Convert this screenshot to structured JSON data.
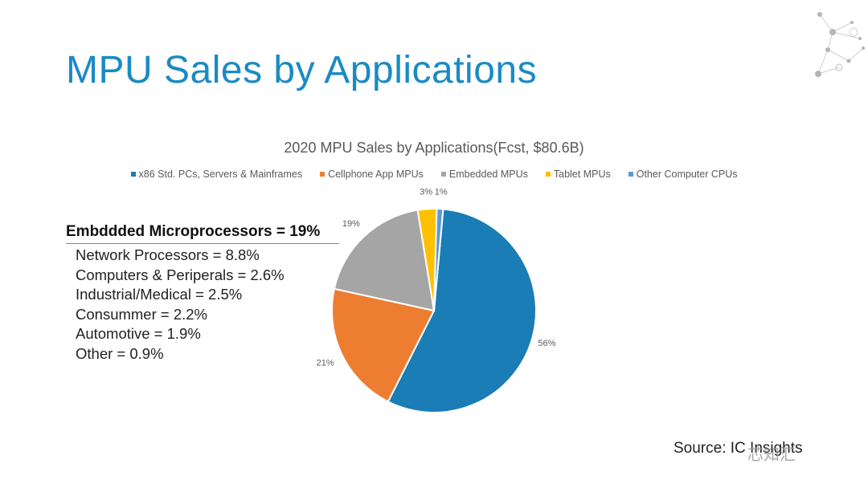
{
  "slide": {
    "title": "MPU Sales by Applications",
    "source": "Source: IC Insights",
    "watermark": "芯知汇"
  },
  "chart_data": {
    "type": "pie",
    "title": "2020 MPU Sales by Applications(Fcst, $80.6B)",
    "legend_position": "top",
    "slices": [
      {
        "name": "x86 Std. PCs, Servers & Mainframes",
        "value": 56,
        "label": "56%",
        "color": "#1a7db5"
      },
      {
        "name": "Cellphone App MPUs",
        "value": 21,
        "label": "21%",
        "color": "#ed7d31"
      },
      {
        "name": "Embedded MPUs",
        "value": 19,
        "label": "19%",
        "color": "#a5a5a5"
      },
      {
        "name": "Tablet MPUs",
        "value": 3,
        "label": "3%",
        "color": "#ffc000"
      },
      {
        "name": "Other Computer CPUs",
        "value": 1,
        "label": "1%",
        "color": "#5b9bd5"
      }
    ]
  },
  "embedded_breakdown": {
    "heading": "Embddded Microprocessors = 19%",
    "items": [
      "Network Processors = 8.8%",
      "Computers & Periperals = 2.6%",
      "Industrial/Medical = 2.5%",
      "Consummer = 2.2%",
      "Automotive = 1.9%",
      "Other = 0.9%"
    ]
  }
}
